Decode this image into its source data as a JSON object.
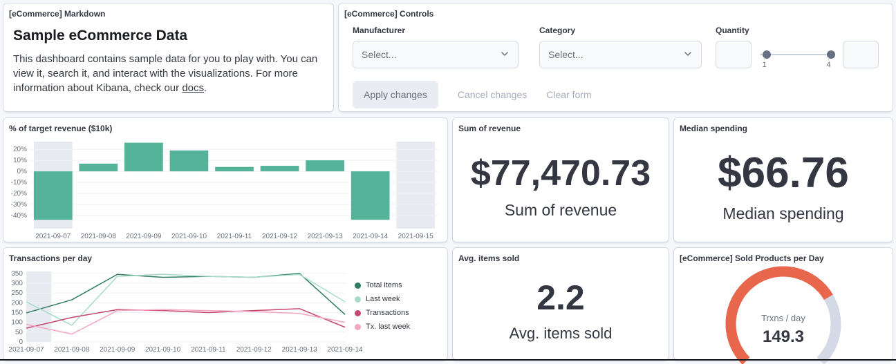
{
  "colors": {
    "background": "#F5F7FA",
    "panel_border": "#D3DAE6",
    "bar_green": "#54B399",
    "band_gray": "#E8EAF1",
    "gauge_orange": "#E7664C",
    "gauge_track": "#D3DAE6",
    "text_dark": "#343741",
    "text_subdued": "#69707D"
  },
  "panels": {
    "markdown": {
      "title": "[eCommerce] Markdown",
      "heading": "Sample eCommerce Data",
      "body_before_link": "This dashboard contains sample data for you to play with. You can view it, search it, and interact with the visualizations. For more information about Kibana, check our ",
      "link_text": "docs",
      "body_after_link": "."
    },
    "controls": {
      "title": "[eCommerce] Controls",
      "manufacturer_label": "Manufacturer",
      "manufacturer_placeholder": "Select...",
      "category_label": "Category",
      "category_placeholder": "Select...",
      "quantity_label": "Quantity",
      "quantity_min": "1",
      "quantity_max": "4",
      "apply_label": "Apply changes",
      "cancel_label": "Cancel changes",
      "clear_label": "Clear form"
    },
    "target_revenue": {
      "title": "% of target revenue ($10k)"
    },
    "sum_revenue": {
      "title": "Sum of revenue",
      "value": "$77,470.73",
      "label": "Sum of revenue"
    },
    "median_spending": {
      "title": "Median spending",
      "value": "$66.76",
      "label": "Median spending"
    },
    "transactions": {
      "title": "Transactions per day"
    },
    "avg_items": {
      "title": "Avg. items sold",
      "value": "2.2",
      "label": "Avg. items sold"
    },
    "sold_products": {
      "title": "[eCommerce] Sold Products per Day"
    }
  },
  "chart_data": [
    {
      "id": "target_revenue_bar",
      "type": "bar",
      "title": "% of target revenue ($10k)",
      "categories": [
        "2021-09-07",
        "2021-09-08",
        "2021-09-09",
        "2021-09-10",
        "2021-09-11",
        "2021-09-12",
        "2021-09-13",
        "2021-09-14",
        "2021-09-15"
      ],
      "values": [
        -44,
        7,
        26,
        19,
        4,
        5,
        10,
        -44,
        null
      ],
      "ylim": [
        -52,
        27
      ],
      "yticks": [
        20,
        10,
        0,
        -10,
        -20,
        -30,
        -40
      ],
      "ytick_suffix": "%",
      "highlight_bands": [
        0,
        8
      ],
      "bar_color": "#54B399",
      "band_color": "#E8EAF1",
      "grid": true,
      "legend": "none"
    },
    {
      "id": "transactions_line",
      "type": "line",
      "title": "Transactions per day",
      "x": [
        "2021-09-07",
        "2021-09-08",
        "2021-09-09",
        "2021-09-10",
        "2021-09-11",
        "2021-09-12",
        "2021-09-13",
        "2021-09-14"
      ],
      "series": [
        {
          "name": "Total items",
          "color": "#2E7D5E",
          "values": [
            148,
            215,
            345,
            330,
            335,
            330,
            350,
            140
          ]
        },
        {
          "name": "Last week",
          "color": "#A7DBC8",
          "values": [
            205,
            85,
            335,
            345,
            335,
            330,
            345,
            205
          ]
        },
        {
          "name": "Transactions",
          "color": "#C4476D",
          "values": [
            70,
            125,
            165,
            160,
            150,
            160,
            170,
            75
          ]
        },
        {
          "name": "Tx. last week",
          "color": "#F3A6C1",
          "values": [
            90,
            40,
            160,
            165,
            160,
            155,
            145,
            100
          ]
        }
      ],
      "ylim": [
        0,
        360
      ],
      "yticks": [
        350,
        300,
        250,
        200,
        150,
        100,
        50,
        0
      ],
      "highlight_bands": [
        0
      ],
      "band_color": "#E8EAF1",
      "grid": true,
      "legend": "right"
    },
    {
      "id": "sold_products_gauge",
      "type": "gauge",
      "title": "[eCommerce] Sold Products per Day",
      "label": "Trxns / day",
      "value": "149.3",
      "fraction": 0.72,
      "arc_color": "#E7664C",
      "track_color": "#D3DAE6"
    }
  ]
}
